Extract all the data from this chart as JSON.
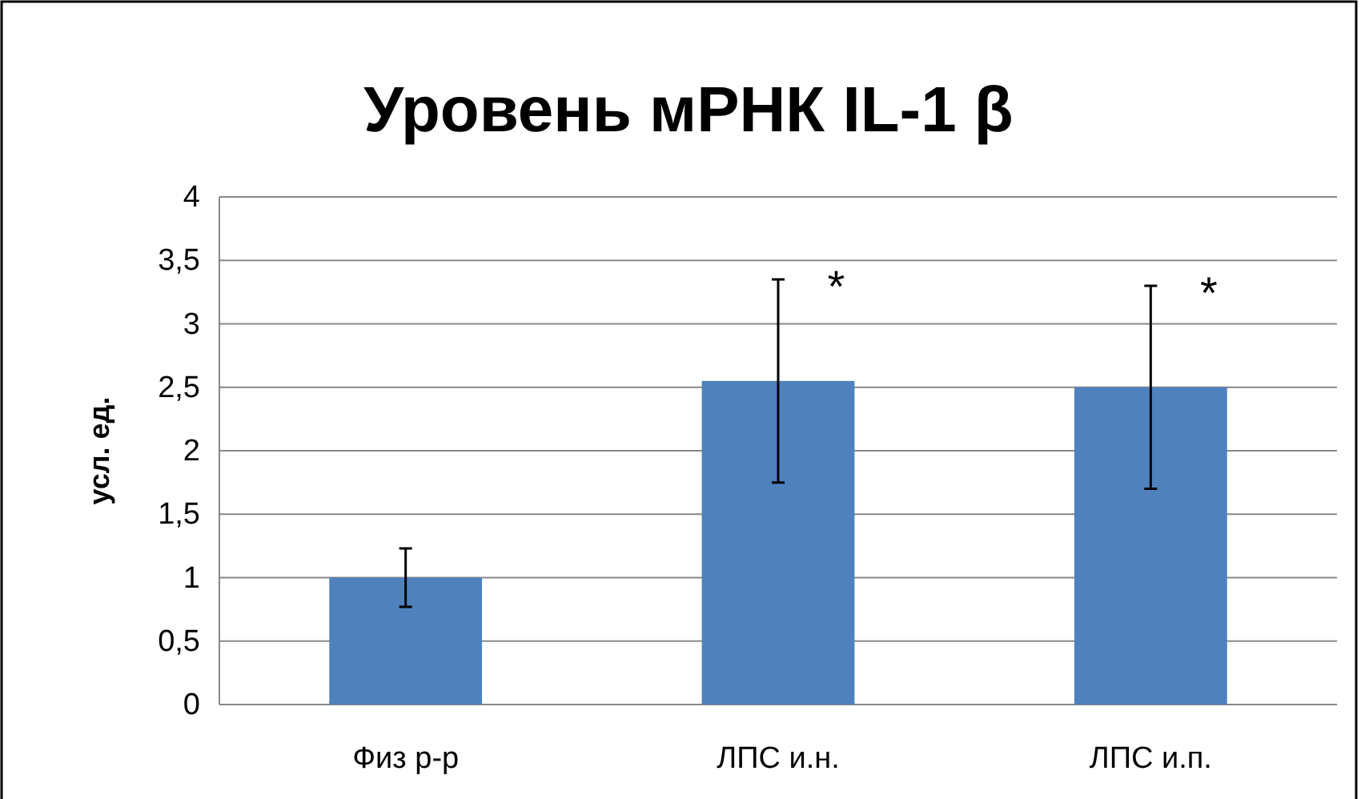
{
  "chart_data": {
    "type": "bar",
    "title": "Уровень мРНК IL-1 β",
    "ylabel": "усл. ед.",
    "categories": [
      "Физ р-р",
      "ЛПС и.н.",
      "ЛПС и.п."
    ],
    "values": [
      1.0,
      2.55,
      2.5
    ],
    "color": "#4f81bd",
    "errors": [
      [
        0.77,
        1.23
      ],
      [
        1.75,
        3.35
      ],
      [
        1.7,
        3.3
      ]
    ],
    "annotations": [
      {
        "text": "*",
        "x": "ЛПС и.н.",
        "y": 3.35
      },
      {
        "text": "*",
        "x": "ЛПС и.п.",
        "y": 3.3
      }
    ],
    "ylim": [
      0,
      4
    ],
    "yticks": [
      0,
      {
        "value": 0.5,
        "label": "0,5"
      },
      1,
      {
        "value": 1.5,
        "label": "1,5"
      },
      2,
      {
        "value": 2.5,
        "label": "2,5"
      },
      3,
      {
        "value": 3.5,
        "label": "3,5"
      },
      4
    ],
    "grid": "y"
  }
}
